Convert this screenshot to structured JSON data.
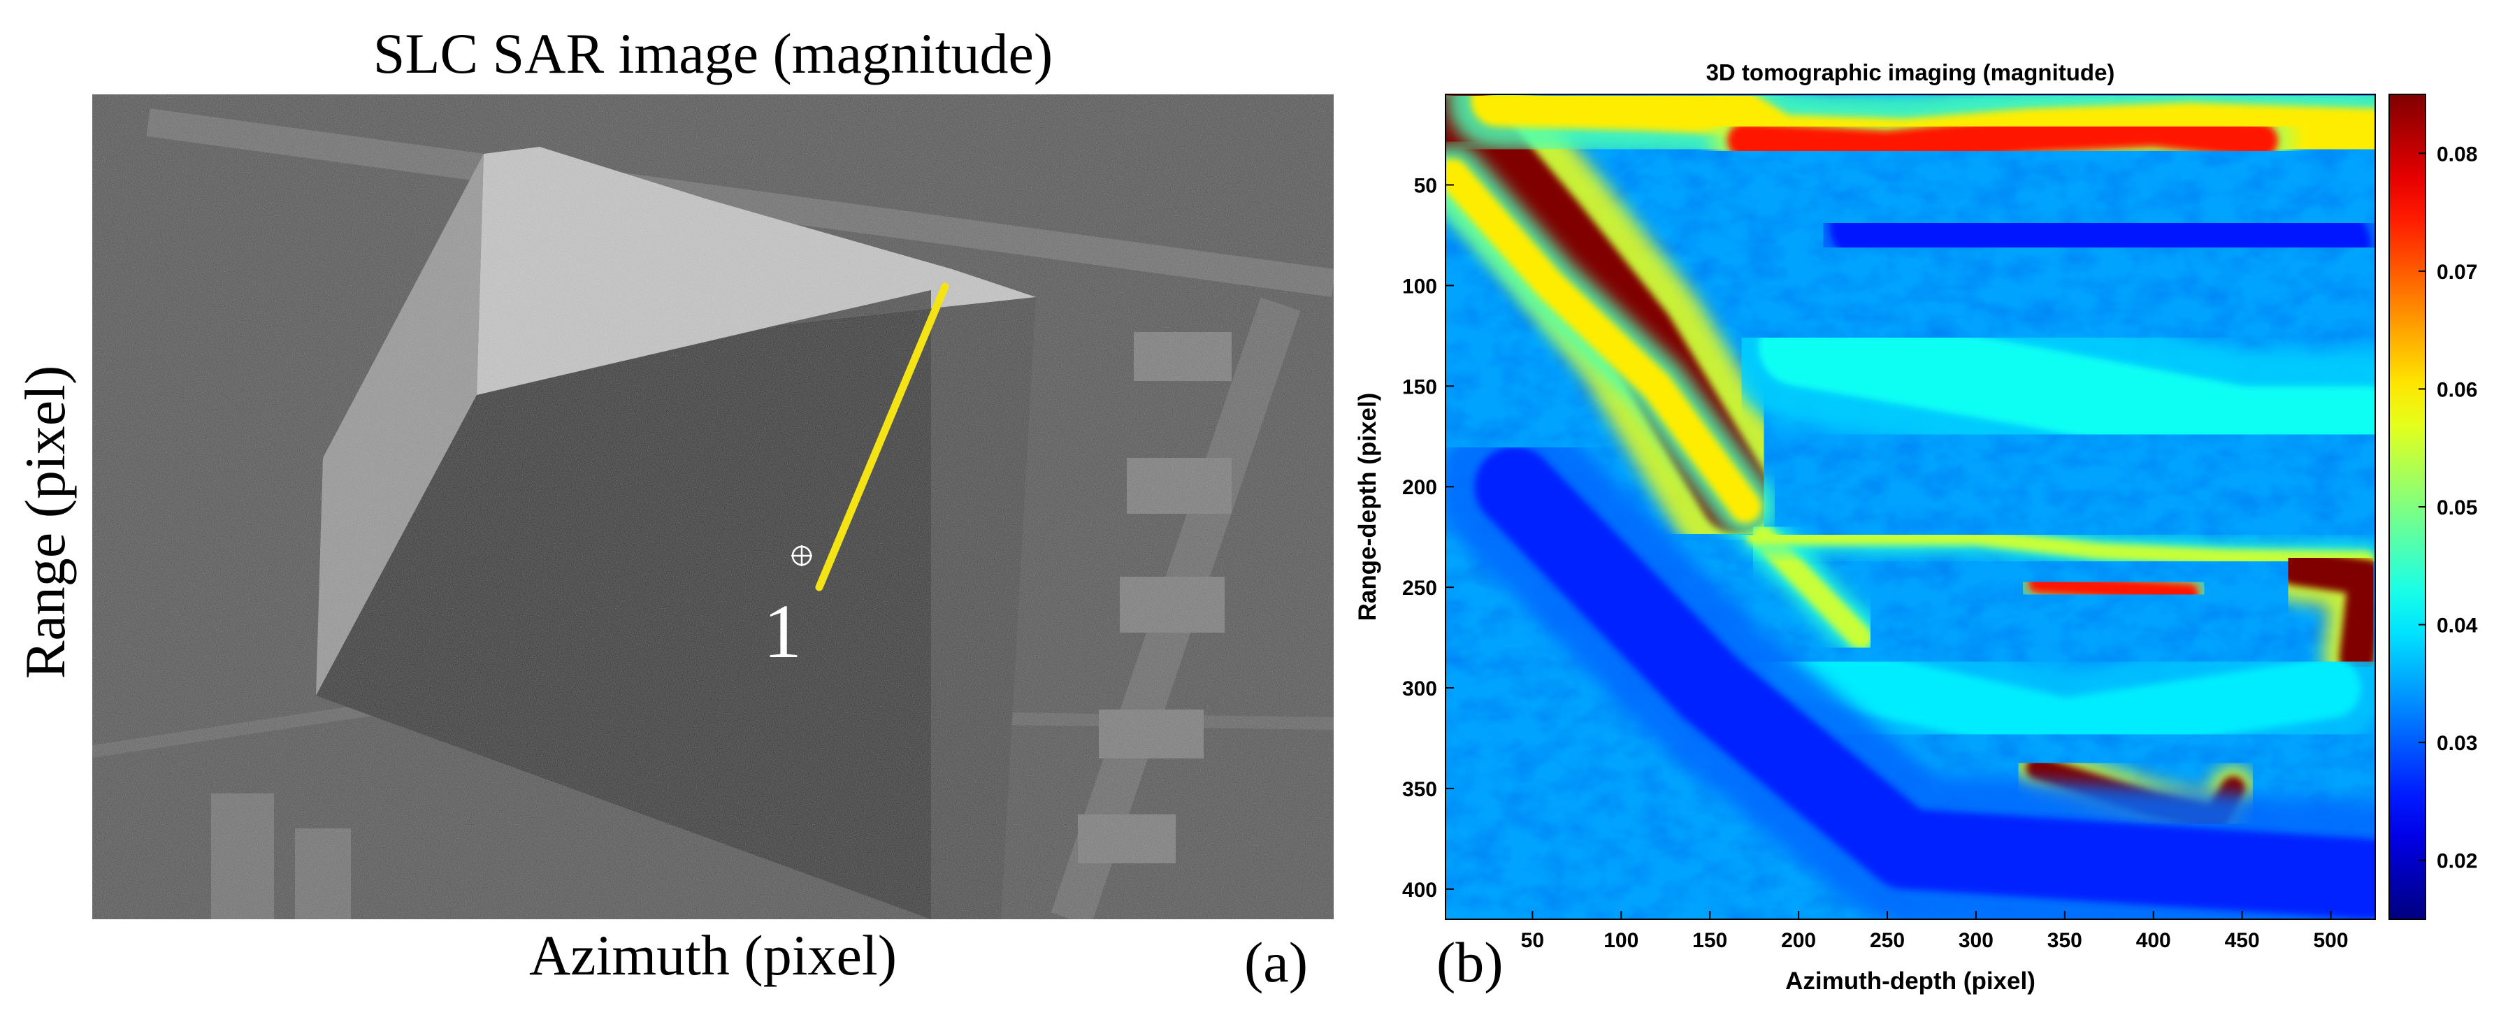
{
  "left_panel": {
    "title": "SLC SAR image (magnitude)",
    "xlabel": "Azimuth (pixel)",
    "ylabel": "Range (pixel)",
    "panel_label": "(a)",
    "point_label": "1",
    "colors": {
      "profile_line": "#f5e415",
      "marker": "#ffffff"
    }
  },
  "right_panel": {
    "panel_label": "(b)"
  },
  "chart_data": {
    "type": "heatmap",
    "title": "3D tomographic imaging (magnitude)",
    "xlabel": "Azimuth-depth (pixel)",
    "ylabel": "Range-depth (pixel)",
    "xlim": [
      1,
      525
    ],
    "ylim": [
      415,
      5
    ],
    "y_reversed": true,
    "xticks": [
      50,
      100,
      150,
      200,
      250,
      300,
      350,
      400,
      450,
      500
    ],
    "yticks": [
      50,
      100,
      150,
      200,
      250,
      300,
      350,
      400
    ],
    "colormap": "jet",
    "clim": [
      0.015,
      0.085
    ],
    "colorbar_ticks": [
      0.02,
      0.03,
      0.04,
      0.05,
      0.06,
      0.07,
      0.08
    ],
    "background_level": 0.035,
    "features": [
      {
        "type": "band",
        "points": [
          [
            12,
            20
          ],
          [
            60,
            70
          ],
          [
            110,
            125
          ],
          [
            165,
            205
          ]
        ],
        "width": 36,
        "value": 0.085
      },
      {
        "type": "band",
        "points": [
          [
            5,
            45
          ],
          [
            60,
            100
          ],
          [
            120,
            150
          ],
          [
            170,
            210
          ]
        ],
        "width": 16,
        "value": 0.06
      },
      {
        "type": "band",
        "points": [
          [
            180,
            225
          ],
          [
            235,
            275
          ]
        ],
        "width": 12,
        "value": 0.055
      },
      {
        "type": "band",
        "points": [
          [
            175,
            225
          ],
          [
            300,
            225
          ],
          [
            370,
            232
          ],
          [
            440,
            235
          ],
          [
            520,
            236
          ]
        ],
        "width": 8,
        "value": 0.055
      },
      {
        "type": "band",
        "points": [
          [
            335,
            248
          ],
          [
            420,
            253
          ]
        ],
        "width": 10,
        "value": 0.075
      },
      {
        "type": "band",
        "points": [
          [
            480,
            240
          ],
          [
            520,
            245
          ],
          [
            515,
            285
          ]
        ],
        "width": 18,
        "value": 0.085
      },
      {
        "type": "band",
        "points": [
          [
            335,
            340
          ],
          [
            400,
            358
          ],
          [
            435,
            365
          ],
          [
            445,
            350
          ]
        ],
        "width": 12,
        "value": 0.085
      },
      {
        "type": "band",
        "points": [
          [
            30,
            8
          ],
          [
            110,
            10
          ],
          [
            160,
            12
          ],
          [
            190,
            28
          ],
          [
            260,
            30
          ],
          [
            330,
            25
          ],
          [
            420,
            22
          ],
          [
            525,
            25
          ]
        ],
        "width": 26,
        "value": 0.06
      },
      {
        "type": "band",
        "points": [
          [
            170,
            28
          ],
          [
            250,
            32
          ],
          [
            330,
            25
          ],
          [
            400,
            22
          ],
          [
            460,
            28
          ]
        ],
        "width": 18,
        "value": 0.075
      },
      {
        "type": "band",
        "points": [
          [
            200,
            130
          ],
          [
            330,
            150
          ],
          [
            450,
            170
          ],
          [
            520,
            170
          ]
        ],
        "width": 40,
        "value": 0.042
      },
      {
        "type": "band",
        "points": [
          [
            200,
            290
          ],
          [
            350,
            320
          ],
          [
            500,
            300
          ]
        ],
        "width": 30,
        "value": 0.04
      },
      {
        "type": "band",
        "points": [
          [
            240,
            70
          ],
          [
            380,
            70
          ],
          [
            500,
            80
          ]
        ],
        "width": 40,
        "value": 0.025
      },
      {
        "type": "band",
        "points": [
          [
            40,
            200
          ],
          [
            150,
            300
          ],
          [
            260,
            380
          ],
          [
            520,
            395
          ]
        ],
        "width": 40,
        "value": 0.026
      }
    ]
  }
}
